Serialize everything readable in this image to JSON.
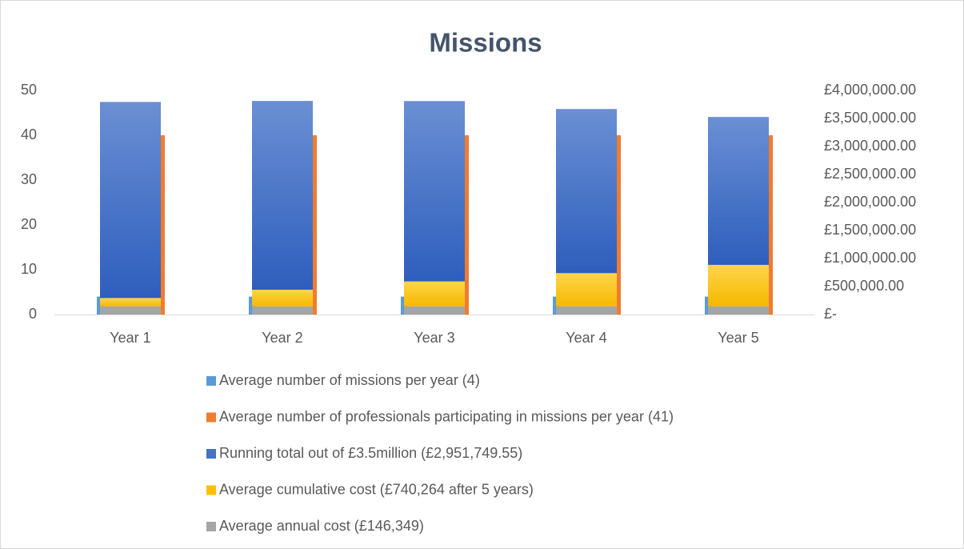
{
  "chart_data": {
    "type": "bar",
    "title": "Missions",
    "categories": [
      "Year 1",
      "Year 2",
      "Year 3",
      "Year 4",
      "Year 5"
    ],
    "series": [
      {
        "name": "Average number of missions per year (4)",
        "color": "#5b9bd5",
        "values": [
          4,
          4,
          4,
          4,
          4
        ]
      },
      {
        "name": "Average number of professionals participating in missions per year (41)",
        "color": "#ed7d31",
        "values": [
          40,
          40,
          40,
          40,
          40
        ]
      },
      {
        "name": "Running total out of £3.5million (£2,951,749.55)",
        "color": "#4472c4",
        "axis": "y2",
        "stack": "cost",
        "values": [
          3500000,
          3370000,
          3220000,
          2930000,
          2640000
        ]
      },
      {
        "name": "Average cumulative cost (£740,264 after 5 years)",
        "color": "#ffc000",
        "axis": "y2",
        "stack": "cost",
        "values": [
          148000,
          296000,
          444000,
          592000,
          740000
        ]
      },
      {
        "name": "Average annual cost (£146,349)",
        "color": "#a5a5a5",
        "axis": "y2",
        "stack": "cost",
        "values": [
          146349,
          146349,
          146349,
          146349,
          146349
        ]
      }
    ],
    "ylim": [
      0,
      50
    ],
    "yticks": [
      0,
      10,
      20,
      30,
      40,
      50
    ],
    "y2lim": [
      0,
      4000000
    ],
    "y2ticks": [
      {
        "value": 0,
        "label": "£-"
      },
      {
        "value": 500000,
        "label": "£500,000.00"
      },
      {
        "value": 1000000,
        "label": "£1,000,000.00"
      },
      {
        "value": 1500000,
        "label": "£1,500,000.00"
      },
      {
        "value": 2000000,
        "label": "£2,000,000.00"
      },
      {
        "value": 2500000,
        "label": "£2,500,000.00"
      },
      {
        "value": 3000000,
        "label": "£3,000,000.00"
      },
      {
        "value": 3500000,
        "label": "£3,500,000.00"
      },
      {
        "value": 4000000,
        "label": "£4,000,000.00"
      }
    ],
    "grid": false,
    "legend": "bottom"
  }
}
